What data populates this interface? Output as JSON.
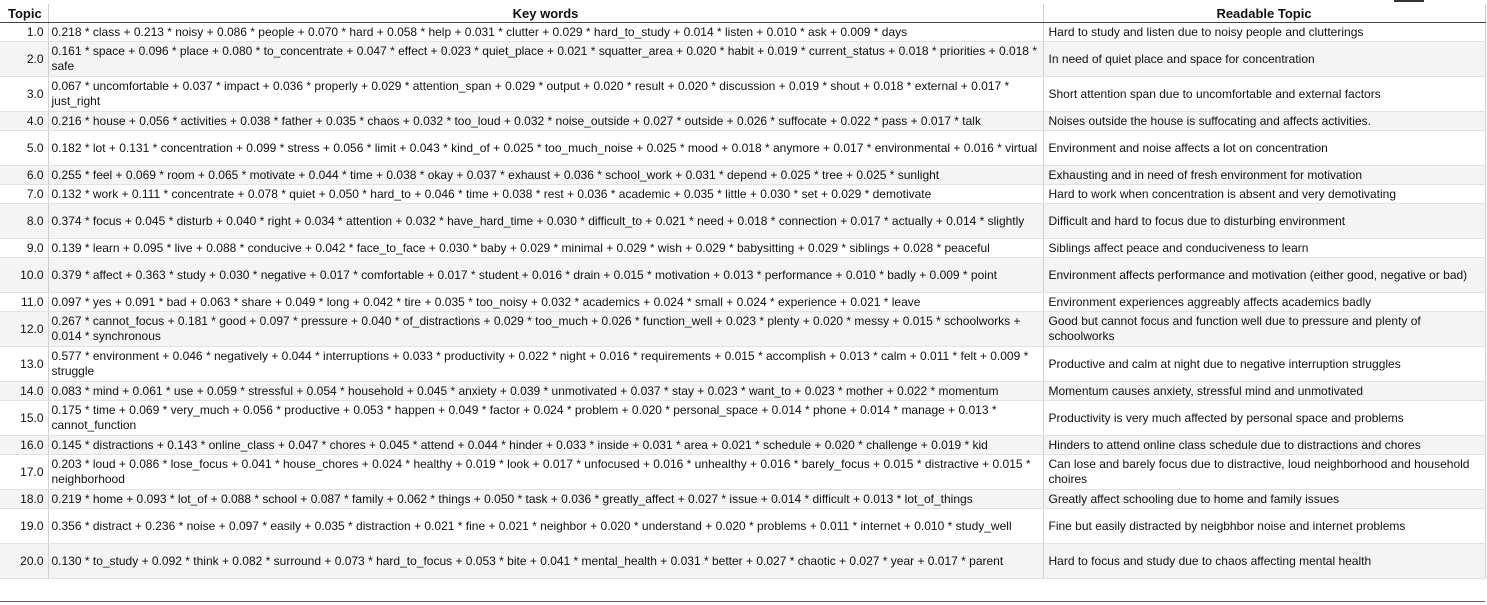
{
  "table": {
    "headers": {
      "topic": "Topic",
      "keywords": "Key words",
      "readable": "Readable Topic"
    },
    "rows": [
      {
        "topic": "1.0",
        "keywords": "0.218 * class + 0.213 * noisy + 0.086 * people + 0.070 * hard + 0.058 * help + 0.031 * clutter + 0.029 * hard_to_study + 0.014 * listen + 0.010 * ask + 0.009 * days",
        "readable": "Hard to study and listen due to noisy people and clutterings"
      },
      {
        "topic": "2.0",
        "keywords": "0.161 * space + 0.096 * place + 0.080 * to_concentrate + 0.047 * effect + 0.023 * quiet_place + 0.021 * squatter_area + 0.020 * habit + 0.019 * current_status + 0.018 * priorities + 0.018 * safe",
        "readable": "In need of quiet place and space for concentration"
      },
      {
        "topic": "3.0",
        "keywords": "0.067 * uncomfortable + 0.037 * impact + 0.036 * properly + 0.029 * attention_span + 0.029 * output + 0.020 * result + 0.020 * discussion + 0.019 * shout + 0.018 * external + 0.017 * just_right",
        "readable": "Short attention span due to uncomfortable and external factors"
      },
      {
        "topic": "4.0",
        "keywords": "0.216 * house + 0.056 * activities + 0.038 * father + 0.035 * chaos + 0.032 * too_loud + 0.032 * noise_outside + 0.027 * outside + 0.026 * suffocate + 0.022 * pass + 0.017 * talk",
        "readable": "Noises outside the house is suffocating and affects activities."
      },
      {
        "topic": "5.0",
        "keywords": "0.182 * lot + 0.131 * concentration + 0.099 * stress + 0.056 * limit + 0.043 * kind_of + 0.025 * too_much_noise + 0.025 * mood + 0.018 * anymore + 0.017 * environmental + 0.016 * virtual",
        "readable": "Environment and noise affects a lot on concentration"
      },
      {
        "topic": "6.0",
        "keywords": "0.255 * feel + 0.069 * room + 0.065 * motivate + 0.044 * time + 0.038 * okay + 0.037 * exhaust + 0.036 * school_work + 0.031 * depend + 0.025 * tree + 0.025 * sunlight",
        "readable": "Exhausting and in need of fresh environment for motivation"
      },
      {
        "topic": "7.0",
        "keywords": "0.132 * work + 0.111 * concentrate + 0.078 * quiet + 0.050 * hard_to + 0.046 * time + 0.038 * rest + 0.036 * academic + 0.035 * little + 0.030 * set + 0.029 * demotivate",
        "readable": "Hard to work when concentration is absent and very demotivating"
      },
      {
        "topic": "8.0",
        "keywords": "0.374 * focus + 0.045 * disturb + 0.040 * right + 0.034 * attention + 0.032 * have_hard_time + 0.030 * difficult_to + 0.021 * need + 0.018 * connection + 0.017 * actually + 0.014 * slightly",
        "readable": "Difficult and hard to focus due to disturbing environment"
      },
      {
        "topic": "9.0",
        "keywords": "0.139 * learn + 0.095 * live + 0.088 * conducive + 0.042 * face_to_face + 0.030 * baby + 0.029 * minimal + 0.029 * wish + 0.029 * babysitting + 0.029 * siblings + 0.028 * peaceful",
        "readable": "Siblings affect peace and conduciveness to learn"
      },
      {
        "topic": "10.0",
        "keywords": "0.379 * affect + 0.363 * study + 0.030 * negative + 0.017 * comfortable + 0.017 * student + 0.016 * drain + 0.015 * motivation + 0.013 * performance + 0.010 * badly + 0.009 * point",
        "readable": "Environment affects performance and motivation (either good, negative or bad)"
      },
      {
        "topic": "11.0",
        "keywords": "0.097 * yes + 0.091 * bad + 0.063 * share + 0.049 * long + 0.042 * tire + 0.035 * too_noisy + 0.032 * academics + 0.024 * small + 0.024 * experience + 0.021 * leave",
        "readable": "Environment experiences aggreably affects academics badly"
      },
      {
        "topic": "12.0",
        "keywords": "0.267 * cannot_focus + 0.181 * good + 0.097 * pressure + 0.040 * of_distractions + 0.029 * too_much + 0.026 * function_well + 0.023 * plenty + 0.020 * messy + 0.015 * schoolworks + 0.014 * synchronous",
        "readable": "Good but cannot focus and function well due to pressure and plenty of schoolworks"
      },
      {
        "topic": "13.0",
        "keywords": "0.577 * environment + 0.046 * negatively + 0.044 * interruptions + 0.033 * productivity + 0.022 * night + 0.016 * requirements + 0.015 * accomplish + 0.013 * calm + 0.011 * felt + 0.009 * struggle",
        "readable": "Productive and calm at night due to negative interruption struggles"
      },
      {
        "topic": "14.0",
        "keywords": "0.083 * mind + 0.061 * use + 0.059 * stressful + 0.054 * household + 0.045 * anxiety + 0.039 * unmotivated + 0.037 * stay + 0.023 * want_to + 0.023 * mother + 0.022 * momentum",
        "readable": "Momentum causes anxiety, stressful mind and unmotivated"
      },
      {
        "topic": "15.0",
        "keywords": "0.175 * time + 0.069 * very_much + 0.056 * productive + 0.053 * happen + 0.049 * factor + 0.024 * problem + 0.020 * personal_space + 0.014 * phone + 0.014 * manage + 0.013 * cannot_function",
        "readable": "Productivity is very much affected by personal space and problems"
      },
      {
        "topic": "16.0",
        "keywords": "0.145 * distractions + 0.143 * online_class + 0.047 * chores + 0.045 * attend + 0.044 * hinder + 0.033 * inside + 0.031 * area + 0.021 * schedule + 0.020 * challenge + 0.019 * kid",
        "readable": "Hinders to attend online class schedule due to distractions and chores"
      },
      {
        "topic": "17.0",
        "keywords": "0.203 * loud + 0.086 * lose_focus + 0.041 * house_chores + 0.024 * healthy + 0.019 * look + 0.017 * unfocused + 0.016 * unhealthy + 0.016 * barely_focus + 0.015 * distractive + 0.015 * neighborhood",
        "readable": "Can lose and barely focus due to distractive, loud neighborhood and household choires"
      },
      {
        "topic": "18.0",
        "keywords": "0.219 * home + 0.093 * lot_of + 0.088 * school + 0.087 * family + 0.062 * things + 0.050 * task + 0.036 * greatly_affect + 0.027 * issue + 0.014 * difficult + 0.013 * lot_of_things",
        "readable": "Greatly affect schooling due to home and family issues"
      },
      {
        "topic": "19.0",
        "keywords": "0.356 * distract + 0.236 * noise + 0.097 * easily + 0.035 * distraction + 0.021 * fine + 0.021 * neighbor + 0.020 * understand + 0.020 * problems + 0.011 * internet + 0.010 * study_well",
        "readable": "Fine but easily distracted by neigbhbor noise and internet problems"
      },
      {
        "topic": "20.0",
        "keywords": "0.130 * to_study + 0.092 * think + 0.082 * surround + 0.073 * hard_to_focus + 0.053 * bite + 0.041 * mental_health + 0.031 * better + 0.027 * chaotic + 0.027 * year + 0.017 * parent",
        "readable": "Hard to focus and study due to chaos affecting mental health"
      }
    ]
  }
}
